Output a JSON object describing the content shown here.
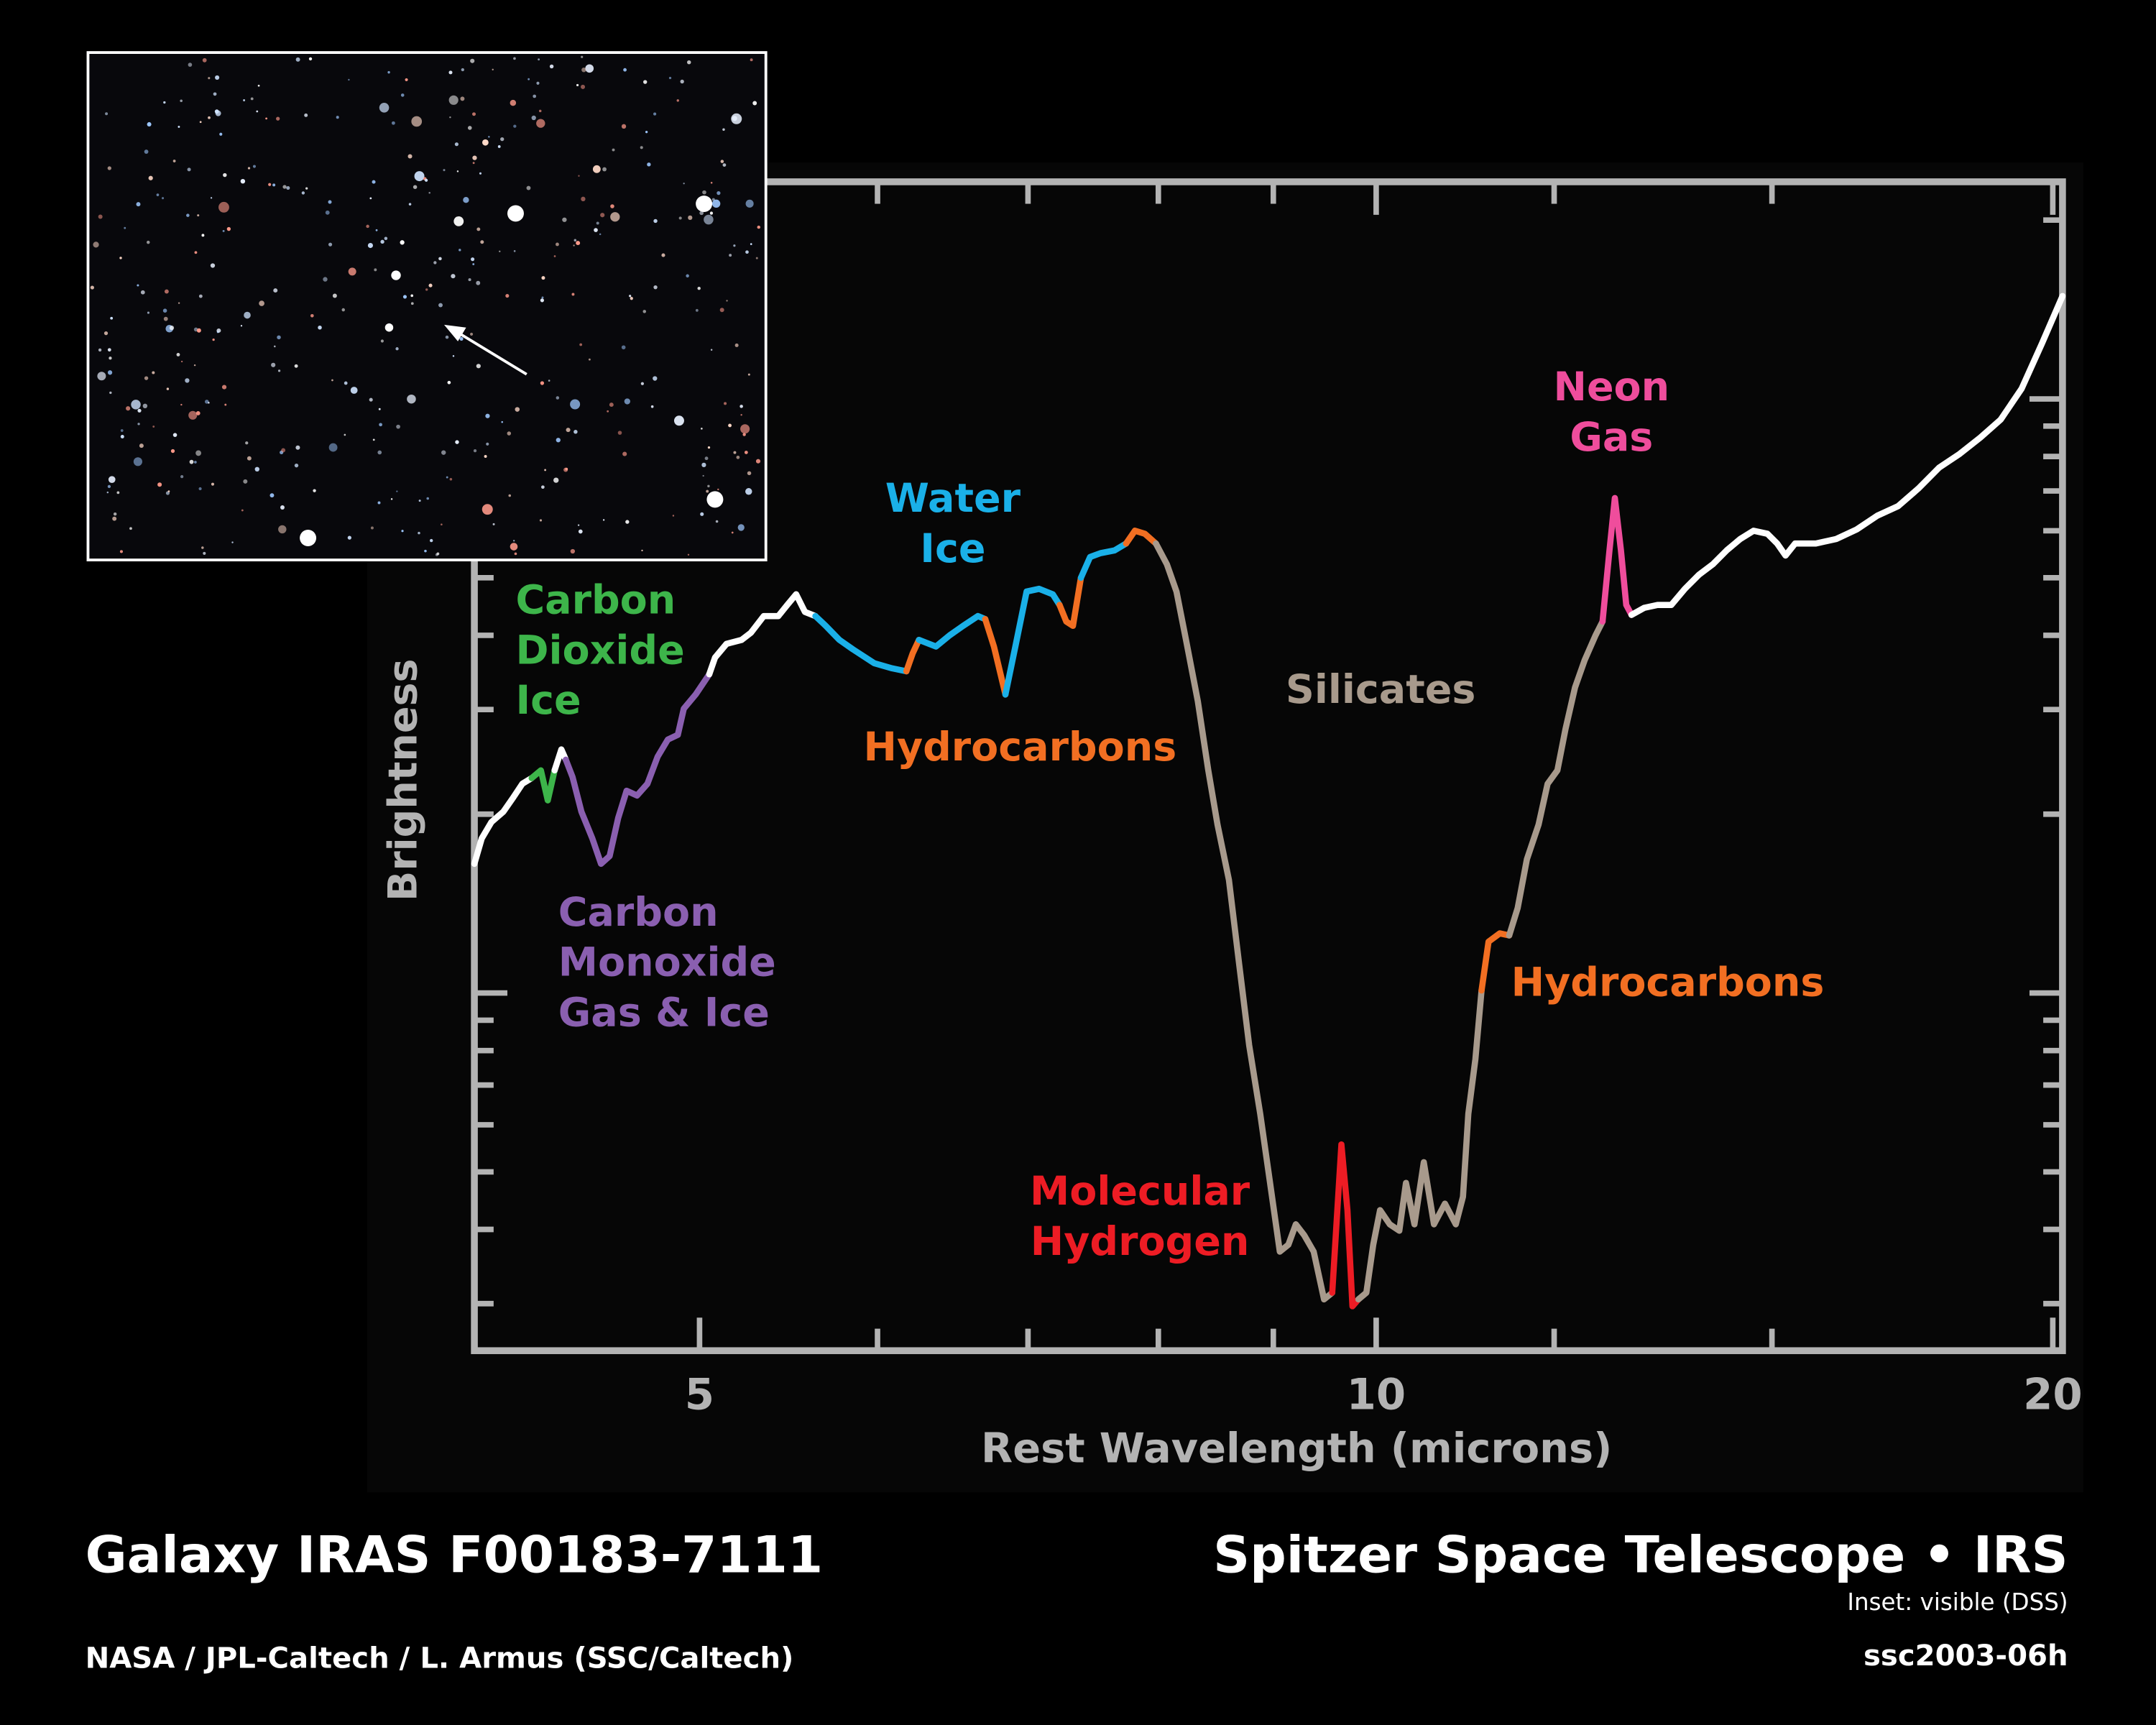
{
  "chart_data": {
    "type": "line",
    "ylabel": "Brightness",
    "xlabel": "Rest Wavelength (microns)",
    "xscale": "log",
    "yscale": "log",
    "xlim": [
      3.97,
      20.2
    ],
    "ylim": [
      2.5,
      232
    ],
    "xticks": [
      5,
      10,
      20
    ],
    "xminorticks": [
      6,
      7,
      8,
      9,
      12,
      15
    ],
    "yminorticks": [
      3,
      4,
      5,
      6,
      7,
      8,
      9,
      10,
      20,
      30,
      40,
      50,
      60,
      70,
      80,
      90,
      100,
      200
    ],
    "frame_color": "#b3b3b3",
    "series": [
      {
        "color": "#ffffff",
        "x": [
          3.97,
          4.0,
          4.04,
          4.09,
          4.13,
          4.17,
          4.21
        ],
        "values": [
          16.5,
          18.2,
          19.4,
          20.2,
          21.3,
          22.5,
          23.0
        ]
      },
      {
        "color": "#3db54a",
        "x": [
          4.21,
          4.25,
          4.28,
          4.31
        ],
        "values": [
          23.0,
          23.7,
          21.1,
          23.7
        ]
      },
      {
        "color": "#ffffff",
        "x": [
          4.31,
          4.34,
          4.36
        ],
        "values": [
          23.7,
          25.7,
          24.7
        ]
      },
      {
        "color": "#8a5fb0",
        "x": [
          4.36,
          4.39,
          4.43,
          4.48,
          4.52,
          4.56,
          4.6,
          4.64,
          4.69,
          4.74,
          4.79,
          4.84,
          4.89,
          4.92,
          4.98,
          5.05
        ],
        "values": [
          24.7,
          23.1,
          20.2,
          18.2,
          16.5,
          17.0,
          19.7,
          21.9,
          21.5,
          22.5,
          25.0,
          26.7,
          27.2,
          30.1,
          31.8,
          34.4
        ]
      },
      {
        "color": "#ffffff",
        "x": [
          5.05,
          5.08,
          5.14,
          5.22,
          5.27,
          5.34,
          5.42,
          5.47,
          5.52,
          5.57,
          5.63
        ],
        "values": [
          34.4,
          36.7,
          38.7,
          39.3,
          40.4,
          43.1,
          43.1,
          45.0,
          46.9,
          43.8,
          43.1
        ]
      },
      {
        "color": "#1ab0e8",
        "x": [
          5.63,
          5.69,
          5.77,
          5.85,
          5.98,
          6.09,
          6.18
        ],
        "values": [
          43.1,
          41.5,
          39.3,
          37.9,
          35.9,
          35.2,
          34.8
        ]
      },
      {
        "color": "#f26f22",
        "x": [
          6.18,
          6.22,
          6.26
        ],
        "values": [
          34.8,
          37.3,
          39.3
        ]
      },
      {
        "color": "#1ab0e8",
        "x": [
          6.26,
          6.37,
          6.46,
          6.55,
          6.65,
          6.7
        ],
        "values": [
          39.3,
          38.3,
          40.0,
          41.5,
          43.1,
          42.6
        ]
      },
      {
        "color": "#f26f22",
        "x": [
          6.7,
          6.76,
          6.84
        ],
        "values": [
          42.6,
          38.3,
          31.8
        ]
      },
      {
        "color": "#1ab0e8",
        "x": [
          6.84,
          6.91,
          6.99,
          7.08,
          7.18,
          7.23
        ],
        "values": [
          31.8,
          38.3,
          47.4,
          47.9,
          46.9,
          45.0
        ]
      },
      {
        "color": "#f26f22",
        "x": [
          7.23,
          7.28,
          7.33,
          7.39
        ],
        "values": [
          45.0,
          42.2,
          41.5,
          50.0
        ]
      },
      {
        "color": "#1ab0e8",
        "x": [
          7.39,
          7.46,
          7.54,
          7.65,
          7.74
        ],
        "values": [
          50.0,
          54.2,
          55.0,
          55.6,
          57.1
        ]
      },
      {
        "color": "#f26f22",
        "x": [
          7.74,
          7.81,
          7.89,
          7.98
        ],
        "values": [
          57.1,
          60.0,
          59.3,
          57.1
        ]
      },
      {
        "color": "#a89a8c",
        "x": [
          7.98,
          8.07,
          8.15,
          8.23,
          8.33,
          8.42,
          8.5,
          8.6,
          8.69,
          8.78,
          8.88,
          8.97,
          9.06,
          9.14,
          9.21,
          9.29,
          9.38,
          9.48,
          9.56
        ],
        "values": [
          57.1,
          52.7,
          47.4,
          39.3,
          31.0,
          23.7,
          19.2,
          15.5,
          11.2,
          8.17,
          6.26,
          4.79,
          3.67,
          3.77,
          4.08,
          3.91,
          3.67,
          3.05,
          3.13
        ]
      },
      {
        "color": "#ed1c24",
        "x": [
          9.56,
          9.61,
          9.65,
          9.71,
          9.76,
          9.82
        ],
        "values": [
          3.13,
          4.31,
          5.56,
          4.31,
          2.97,
          3.05
        ]
      },
      {
        "color": "#a89a8c",
        "x": [
          9.82,
          9.9,
          9.97,
          10.04,
          10.14,
          10.24,
          10.31,
          10.4,
          10.5,
          10.61,
          10.73,
          10.85,
          10.93,
          10.99,
          11.07,
          11.14
        ],
        "values": [
          3.05,
          3.13,
          3.77,
          4.31,
          4.08,
          3.98,
          4.79,
          4.08,
          5.19,
          4.08,
          4.42,
          4.08,
          4.54,
          6.26,
          7.74,
          10.1
        ]
      },
      {
        "color": "#f26f22",
        "x": [
          11.14,
          11.22,
          11.35,
          11.46
        ],
        "values": [
          10.1,
          12.2,
          12.6,
          12.5
        ]
      },
      {
        "color": "#a89a8c",
        "x": [
          11.46,
          11.56,
          11.67,
          11.81,
          11.92,
          12.04,
          12.14,
          12.26,
          12.38,
          12.52,
          12.61
        ],
        "values": [
          12.5,
          13.9,
          16.8,
          19.2,
          22.5,
          23.7,
          27.8,
          32.7,
          36.3,
          40.0,
          42.2
        ]
      },
      {
        "color": "#ef4d9c",
        "x": [
          12.61,
          12.7,
          12.77,
          12.85,
          12.92,
          12.99
        ],
        "values": [
          42.2,
          55.6,
          68.1,
          55.6,
          45.0,
          43.3
        ]
      },
      {
        "color": "#ffffff",
        "x": [
          12.99,
          13.16,
          13.34,
          13.53,
          13.72,
          13.92,
          14.12,
          14.32,
          14.52,
          14.72,
          14.93,
          15.08,
          15.21,
          15.36,
          15.69,
          16.02,
          16.36,
          16.71,
          17.07,
          17.43,
          17.8,
          18.18,
          18.57,
          18.96,
          19.37,
          19.78,
          20.2
        ],
        "values": [
          43.3,
          44.5,
          45.0,
          45.0,
          47.9,
          50.6,
          52.7,
          55.6,
          58.1,
          60.0,
          59.3,
          57.1,
          54.5,
          57.1,
          57.1,
          58.1,
          60.3,
          63.6,
          66.0,
          70.7,
          76.6,
          80.8,
          86.1,
          92.3,
          104,
          124,
          149
        ]
      }
    ],
    "annotations": [
      {
        "lines": [
          "Carbon",
          "Dioxide",
          "Ice"
        ],
        "color": "#3db54a"
      },
      {
        "lines": [
          "Carbon",
          "Monoxide",
          "Gas & Ice"
        ],
        "color": "#8a5fb0"
      },
      {
        "lines": [
          "Water",
          "Ice"
        ],
        "color": "#1ab0e8"
      },
      {
        "lines": [
          "Hydrocarbons"
        ],
        "color": "#f26f22"
      },
      {
        "lines": [
          "Silicates"
        ],
        "color": "#a89a8c"
      },
      {
        "lines": [
          "Molecular",
          "Hydrogen"
        ],
        "color": "#ed1c24"
      },
      {
        "lines": [
          "Hydrocarbons"
        ],
        "color": "#f26f22"
      },
      {
        "lines": [
          "Neon",
          "Gas"
        ],
        "color": "#ef4d9c"
      }
    ]
  },
  "caption": {
    "title": "Galaxy IRAS F00183-7111",
    "instrument": "Spitzer Space Telescope • IRS",
    "inset_note": "Inset: visible (DSS)",
    "credit": "NASA / JPL-Caltech / L. Armus (SSC/Caltech)",
    "id": "ssc2003-06h"
  }
}
